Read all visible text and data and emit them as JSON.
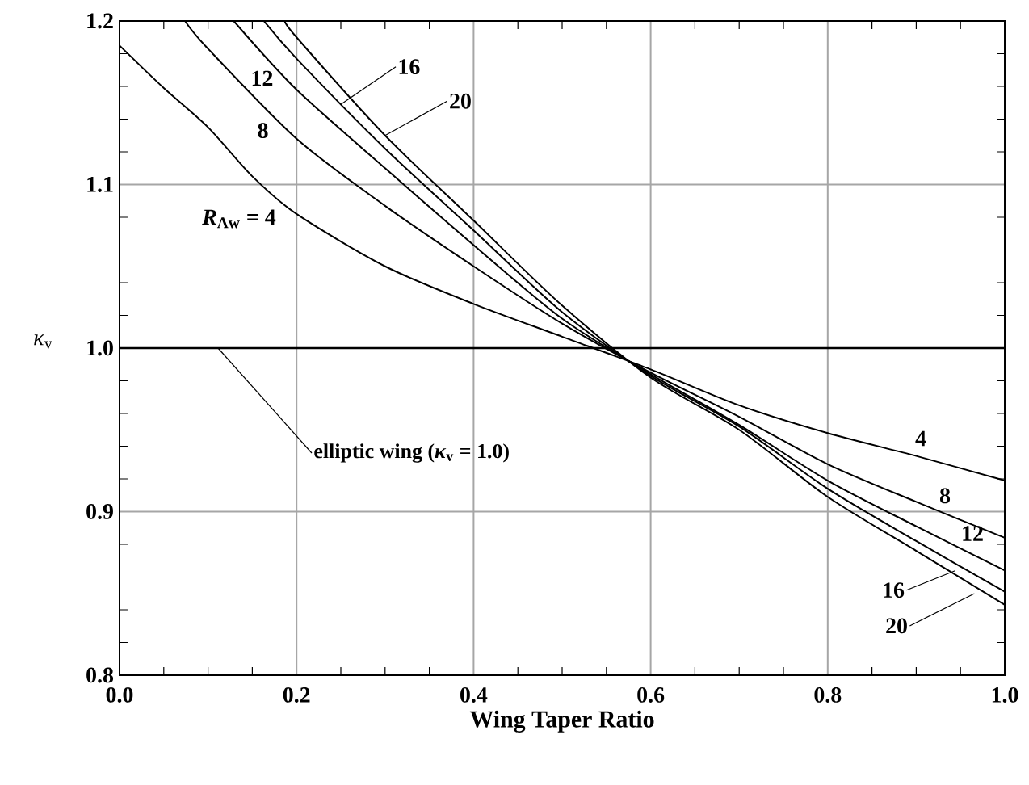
{
  "chart_data": {
    "type": "line",
    "xlabel": "Wing Taper Ratio",
    "ylabel": "*κ*$_{v}$",
    "xlim": [
      0,
      1
    ],
    "ylim": [
      0.8,
      1.2
    ],
    "xticks": [
      {
        "value": 0,
        "label": "0.0"
      },
      {
        "value": 0.2,
        "label": "0.2"
      },
      {
        "value": 0.4,
        "label": "0.4"
      },
      {
        "value": 0.6,
        "label": "0.6"
      },
      {
        "value": 0.8,
        "label": "0.8"
      },
      {
        "value": 1,
        "label": "1.0"
      }
    ],
    "yticks": [
      0.8,
      0.9,
      {
        "value": 1,
        "label": "1.0"
      },
      1.1,
      1.2
    ],
    "grid": true,
    "legend": "right",
    "marker": "none",
    "line_style": "solid",
    "series": [
      {
        "name": "4",
        "color": "#000000",
        "x": [
          0,
          0.05,
          0.1,
          0.15,
          0.2,
          0.3,
          0.4,
          0.5,
          0.6,
          0.7,
          0.8,
          0.9,
          1.0
        ],
        "values": [
          1.185,
          1.159,
          1.135,
          1.105,
          1.082,
          1.05,
          1.027,
          1.007,
          0.987,
          0.965,
          0.948,
          0.934,
          0.919
        ]
      },
      {
        "name": "8",
        "color": "#000000",
        "x": [
          0.074,
          0.1,
          0.2,
          0.3,
          0.4,
          0.5,
          0.6,
          0.7,
          0.8,
          0.9,
          1.0
        ],
        "values": [
          1.2,
          1.183,
          1.128,
          1.087,
          1.05,
          1.015,
          0.985,
          0.958,
          0.929,
          0.906,
          0.884
        ]
      },
      {
        "name": "12",
        "color": "#000000",
        "x": [
          0.129,
          0.2,
          0.3,
          0.4,
          0.5,
          0.6,
          0.7,
          0.8,
          0.9,
          1.0
        ],
        "values": [
          1.2,
          1.158,
          1.11,
          1.063,
          1.018,
          0.984,
          0.953,
          0.919,
          0.891,
          0.864
        ]
      },
      {
        "name": "16",
        "color": "#000000",
        "x": [
          0.163,
          0.2,
          0.3,
          0.4,
          0.5,
          0.6,
          0.7,
          0.8,
          0.9,
          1.0
        ],
        "values": [
          1.2,
          1.177,
          1.122,
          1.072,
          1.022,
          0.983,
          0.952,
          0.914,
          0.882,
          0.851
        ]
      },
      {
        "name": "20",
        "color": "#000000",
        "x": [
          0.187,
          0.2,
          0.3,
          0.4,
          0.5,
          0.6,
          0.7,
          0.8,
          0.9,
          1.0
        ],
        "values": [
          1.2,
          1.19,
          1.13,
          1.078,
          1.026,
          0.982,
          0.95,
          0.909,
          0.876,
          0.843
        ]
      }
    ],
    "ref_lines": [
      {
        "axis": "y",
        "value": 1.0,
        "label": "elliptic wing (*κ*$_{v}$ = 1.0)",
        "color": "#000000",
        "line_style": "solid"
      }
    ],
    "annotations": [
      "*R*$_{Λw}$ = 4",
      "8",
      "12",
      {
        "text": "16",
        "x": 0.25,
        "y": 1.149
      },
      {
        "text": "20",
        "x": 0.3,
        "y": 1.13
      }
    ]
  }
}
